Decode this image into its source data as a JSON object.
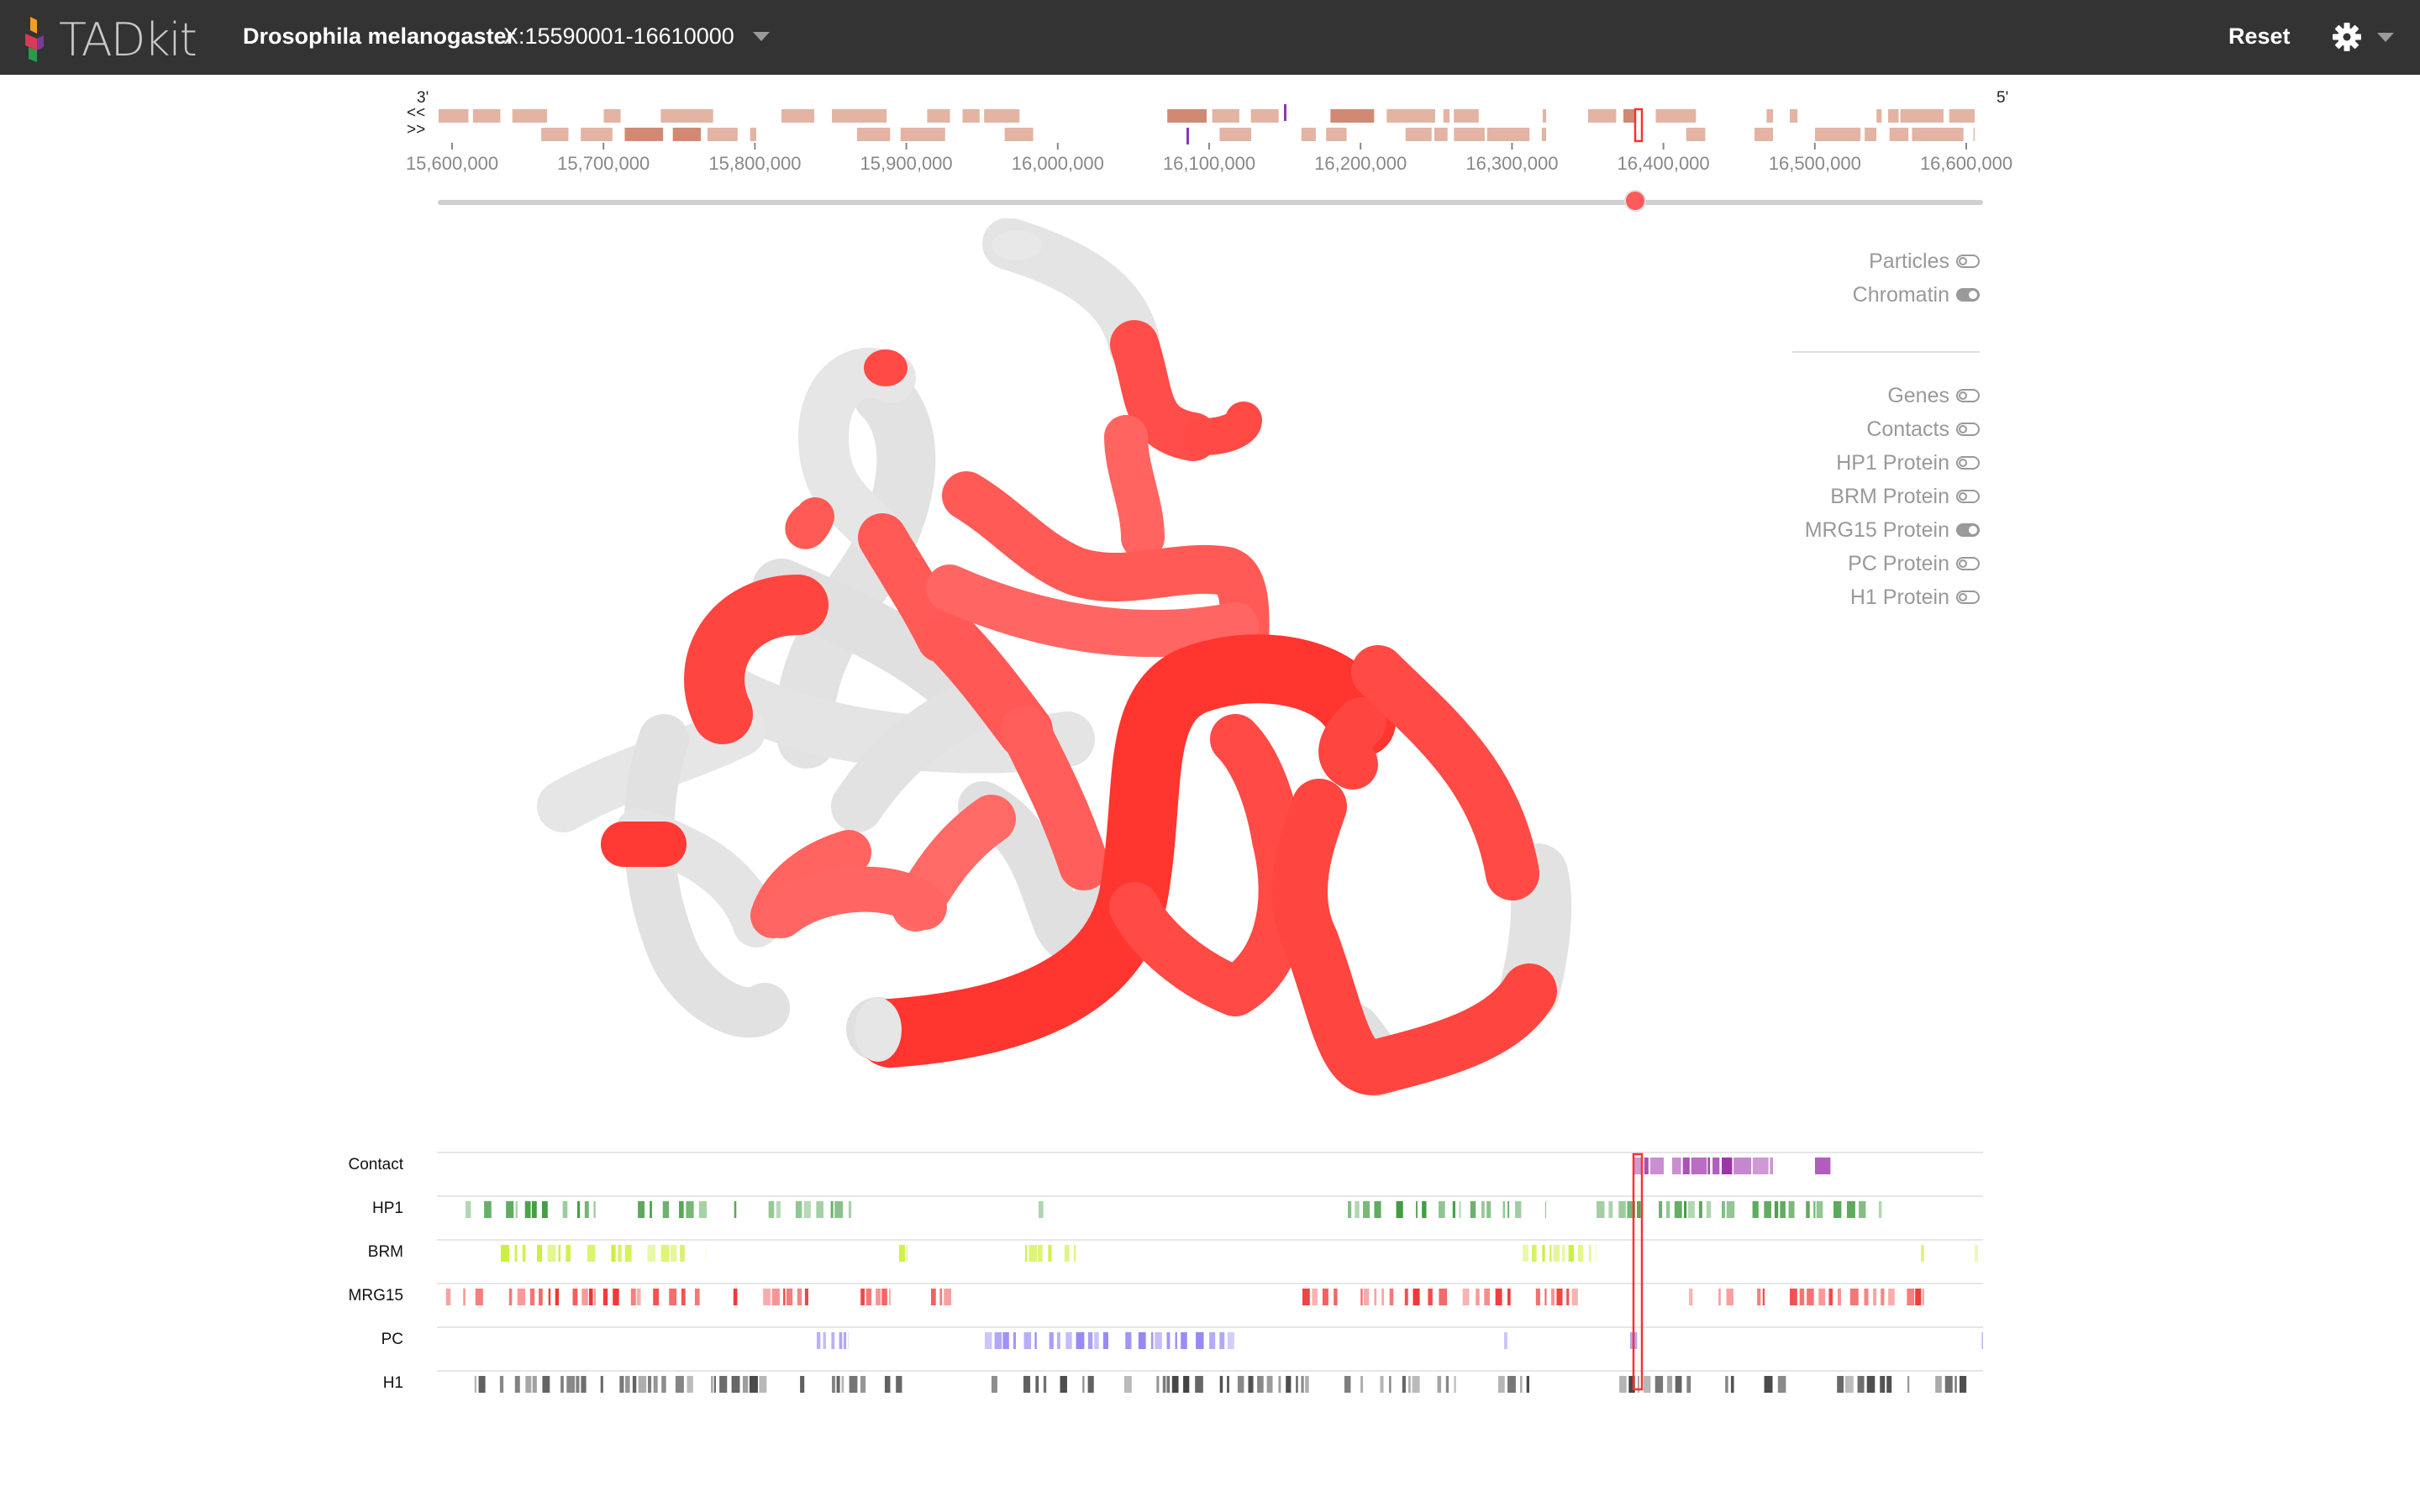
{
  "app": {
    "logo_text": "TADkit",
    "species": "Drosophila melanogaster",
    "region": "X:15590001-16610000",
    "reset_label": "Reset"
  },
  "browser": {
    "strand_left": "3'",
    "strand_right": "5'",
    "forward_label": "<<",
    "reverse_label": ">>",
    "tick_labels": [
      "15,600,000",
      "15,700,000",
      "15,800,000",
      "15,900,000",
      "16,000,000",
      "16,100,000",
      "16,200,000",
      "16,300,000",
      "16,400,000",
      "16,500,000",
      "16,600,000"
    ],
    "position_fraction": 0.775
  },
  "panel": {
    "view_toggles": [
      {
        "label": "Particles",
        "on": false
      },
      {
        "label": "Chromatin",
        "on": true
      }
    ],
    "track_toggles": [
      {
        "label": "Genes",
        "on": false
      },
      {
        "label": "Contacts",
        "on": false
      },
      {
        "label": "HP1 Protein",
        "on": false
      },
      {
        "label": "BRM Protein",
        "on": false
      },
      {
        "label": "MRG15 Protein",
        "on": true
      },
      {
        "label": "PC Protein",
        "on": false
      },
      {
        "label": "H1 Protein",
        "on": false
      }
    ]
  },
  "tracks": [
    {
      "label": "Contact",
      "color": "#9b30a8"
    },
    {
      "label": "HP1",
      "color": "#3f9a3f"
    },
    {
      "label": "BRM",
      "color": "#c7f02a"
    },
    {
      "label": "MRG15",
      "color": "#ef3030"
    },
    {
      "label": "PC",
      "color": "#8a7cf0"
    },
    {
      "label": "H1",
      "color": "#444444"
    }
  ],
  "colors": {
    "topbar": "#333333",
    "accent": "#ff5a5a",
    "chromatin_active": "#ff3a30",
    "chromatin_inactive": "#dedede",
    "gene_bar": "#e3b4a3"
  }
}
